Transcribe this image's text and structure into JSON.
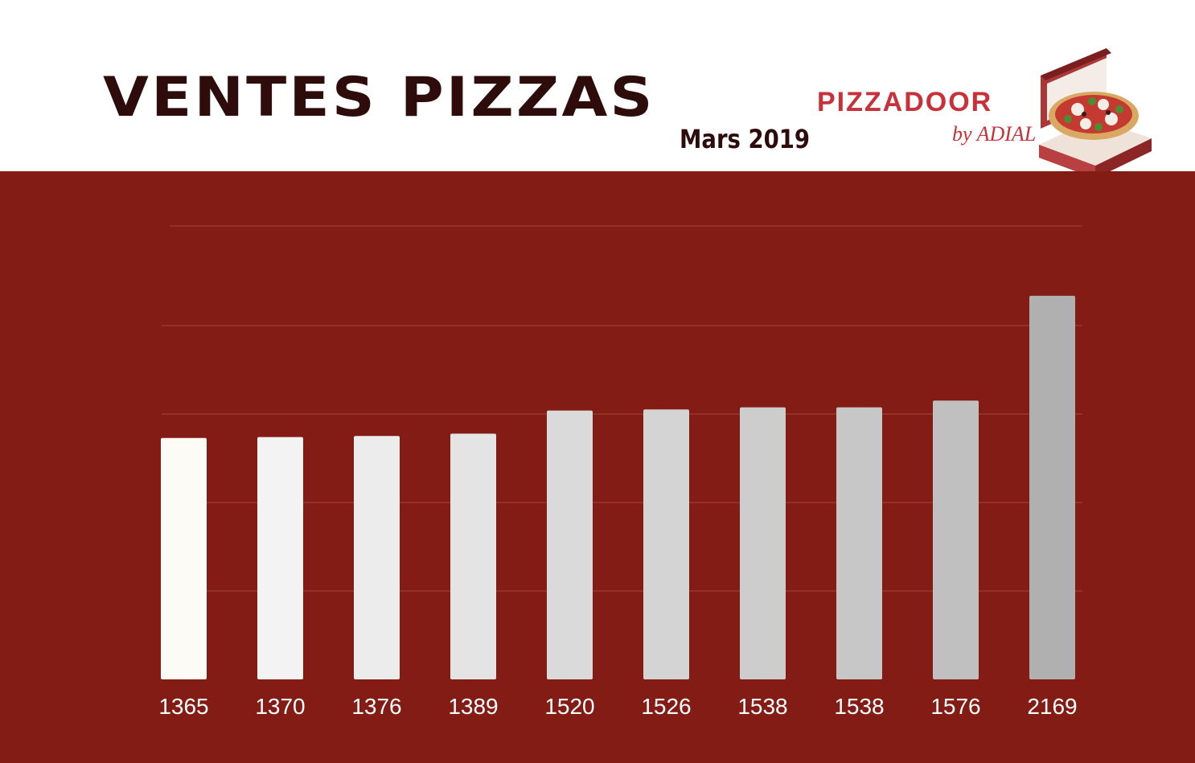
{
  "header": {
    "title": "VENTES PIZZAS",
    "subtitle": "Mars 2019",
    "brand_name": "PIZZADOOR",
    "brand_sub": "by ADIAL",
    "logo_icon": "pizza-box-icon"
  },
  "colors": {
    "background": "#831c14",
    "title": "#2e0c0c",
    "brand": "#c8313a",
    "bars": [
      "#fdfbf6",
      "#f3f3f3",
      "#ececec",
      "#e4e4e4",
      "#dadada",
      "#d4d4d4",
      "#cdcdcd",
      "#c7c7c7",
      "#c0c0c0",
      "#b0b0b0"
    ]
  },
  "chart_data": {
    "type": "bar",
    "title": "VENTES PIZZAS",
    "subtitle": "Mars 2019",
    "categories": [
      "1365",
      "1370",
      "1376",
      "1389",
      "1520",
      "1526",
      "1538",
      "1538",
      "1576",
      "2169"
    ],
    "values": [
      1365,
      1370,
      1376,
      1389,
      1520,
      1526,
      1538,
      1538,
      1576,
      2169
    ],
    "xlabel": "",
    "ylabel": "",
    "ylim": [
      0,
      2400
    ],
    "grid": true,
    "legend": "none"
  }
}
